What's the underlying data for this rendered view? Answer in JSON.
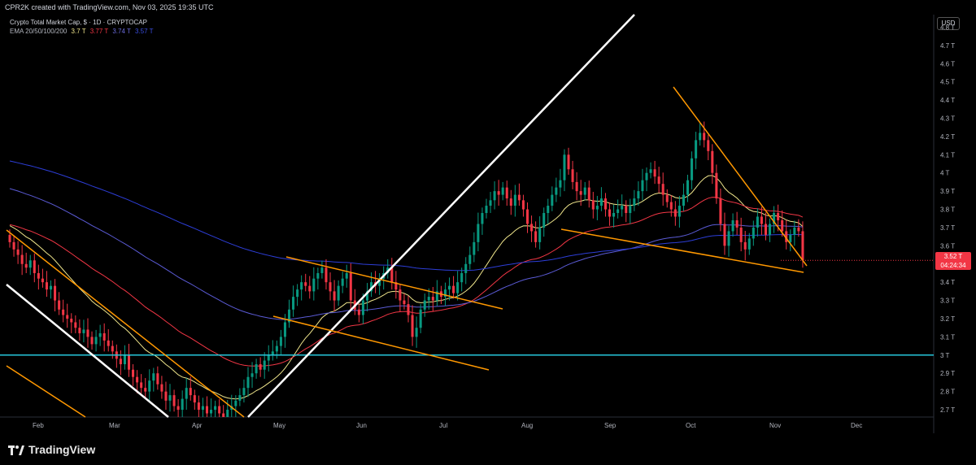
{
  "header": {
    "attribution": "CPR2K created with TradingView.com, Nov 03, 2025 19:35 UTC"
  },
  "legend": {
    "title": "Crypto Total Market Cap, $ · 1D · CRYPTOCAP",
    "ema_label": "EMA 20/50/100/200",
    "ema_values": [
      "3.7 T",
      "3.77 T",
      "3.74 T",
      "3.57 T"
    ],
    "ema_colors": [
      "#f0e68c",
      "#f23645",
      "#5b5bd6",
      "#2d3ed8"
    ]
  },
  "price_scale": {
    "currency": "USD",
    "current_price": "3.52 T",
    "countdown": "04:24:34"
  },
  "brand": {
    "name": "TradingView"
  },
  "chart_data": {
    "type": "candlestick",
    "title": "Crypto Total Market Cap, $ · 1D · CRYPTOCAP",
    "x_labels": [
      "Feb",
      "Mar",
      "Apr",
      "May",
      "Jun",
      "Jul",
      "Aug",
      "Sep",
      "Oct",
      "Nov",
      "Dec"
    ],
    "y_ticks": [
      "4.8 T",
      "4.7 T",
      "4.6 T",
      "4.5 T",
      "4.4 T",
      "4.3 T",
      "4.2 T",
      "4.1 T",
      "4 T",
      "3.9 T",
      "3.8 T",
      "3.7 T",
      "3.6 T",
      "3.4 T",
      "3.3 T",
      "3.2 T",
      "3.1 T",
      "3 T",
      "2.9 T",
      "2.8 T",
      "2.7 T"
    ],
    "ylim": [
      2.66,
      4.86
    ],
    "horizontal_level": 3.0,
    "current_price": 3.52,
    "closes": [
      3.62,
      3.58,
      3.55,
      3.5,
      3.48,
      3.52,
      3.45,
      3.42,
      3.4,
      3.36,
      3.38,
      3.3,
      3.25,
      3.22,
      3.2,
      3.18,
      3.15,
      3.12,
      3.14,
      3.1,
      3.06,
      3.1,
      3.12,
      3.08,
      3.05,
      3.02,
      2.98,
      2.95,
      3.0,
      2.92,
      2.88,
      2.85,
      2.82,
      2.8,
      2.86,
      2.9,
      2.84,
      2.8,
      2.75,
      2.78,
      2.72,
      2.7,
      2.76,
      2.82,
      2.78,
      2.74,
      2.7,
      2.72,
      2.68,
      2.7,
      2.72,
      2.68,
      2.66,
      2.7,
      2.72,
      2.75,
      2.78,
      2.82,
      2.88,
      2.9,
      2.95,
      2.92,
      2.97,
      3.0,
      3.02,
      3.05,
      3.1,
      3.18,
      3.25,
      3.32,
      3.36,
      3.4,
      3.38,
      3.35,
      3.42,
      3.45,
      3.48,
      3.4,
      3.35,
      3.3,
      3.38,
      3.42,
      3.45,
      3.3,
      3.25,
      3.22,
      3.3,
      3.35,
      3.4,
      3.38,
      3.42,
      3.45,
      3.48,
      3.4,
      3.36,
      3.3,
      3.28,
      3.22,
      3.1,
      3.15,
      3.25,
      3.3,
      3.32,
      3.3,
      3.35,
      3.32,
      3.36,
      3.38,
      3.34,
      3.4,
      3.45,
      3.5,
      3.55,
      3.62,
      3.72,
      3.78,
      3.82,
      3.85,
      3.9,
      3.88,
      3.92,
      3.86,
      3.82,
      3.88,
      3.85,
      3.8,
      3.72,
      3.68,
      3.62,
      3.7,
      3.78,
      3.82,
      3.88,
      3.92,
      3.96,
      4.1,
      4.02,
      3.95,
      3.9,
      3.88,
      3.92,
      3.85,
      3.8,
      3.82,
      3.86,
      3.8,
      3.76,
      3.78,
      3.8,
      3.82,
      3.78,
      3.82,
      3.86,
      3.9,
      3.96,
      4.0,
      4.02,
      3.98,
      3.94,
      3.88,
      3.84,
      3.8,
      3.76,
      3.82,
      3.88,
      3.96,
      4.08,
      4.18,
      4.22,
      4.18,
      4.12,
      4.0,
      3.86,
      3.72,
      3.6,
      3.68,
      3.74,
      3.7,
      3.62,
      3.58,
      3.64,
      3.7,
      3.76,
      3.72,
      3.66,
      3.72,
      3.78,
      3.74,
      3.68,
      3.62,
      3.66,
      3.7,
      3.68,
      3.52
    ]
  }
}
